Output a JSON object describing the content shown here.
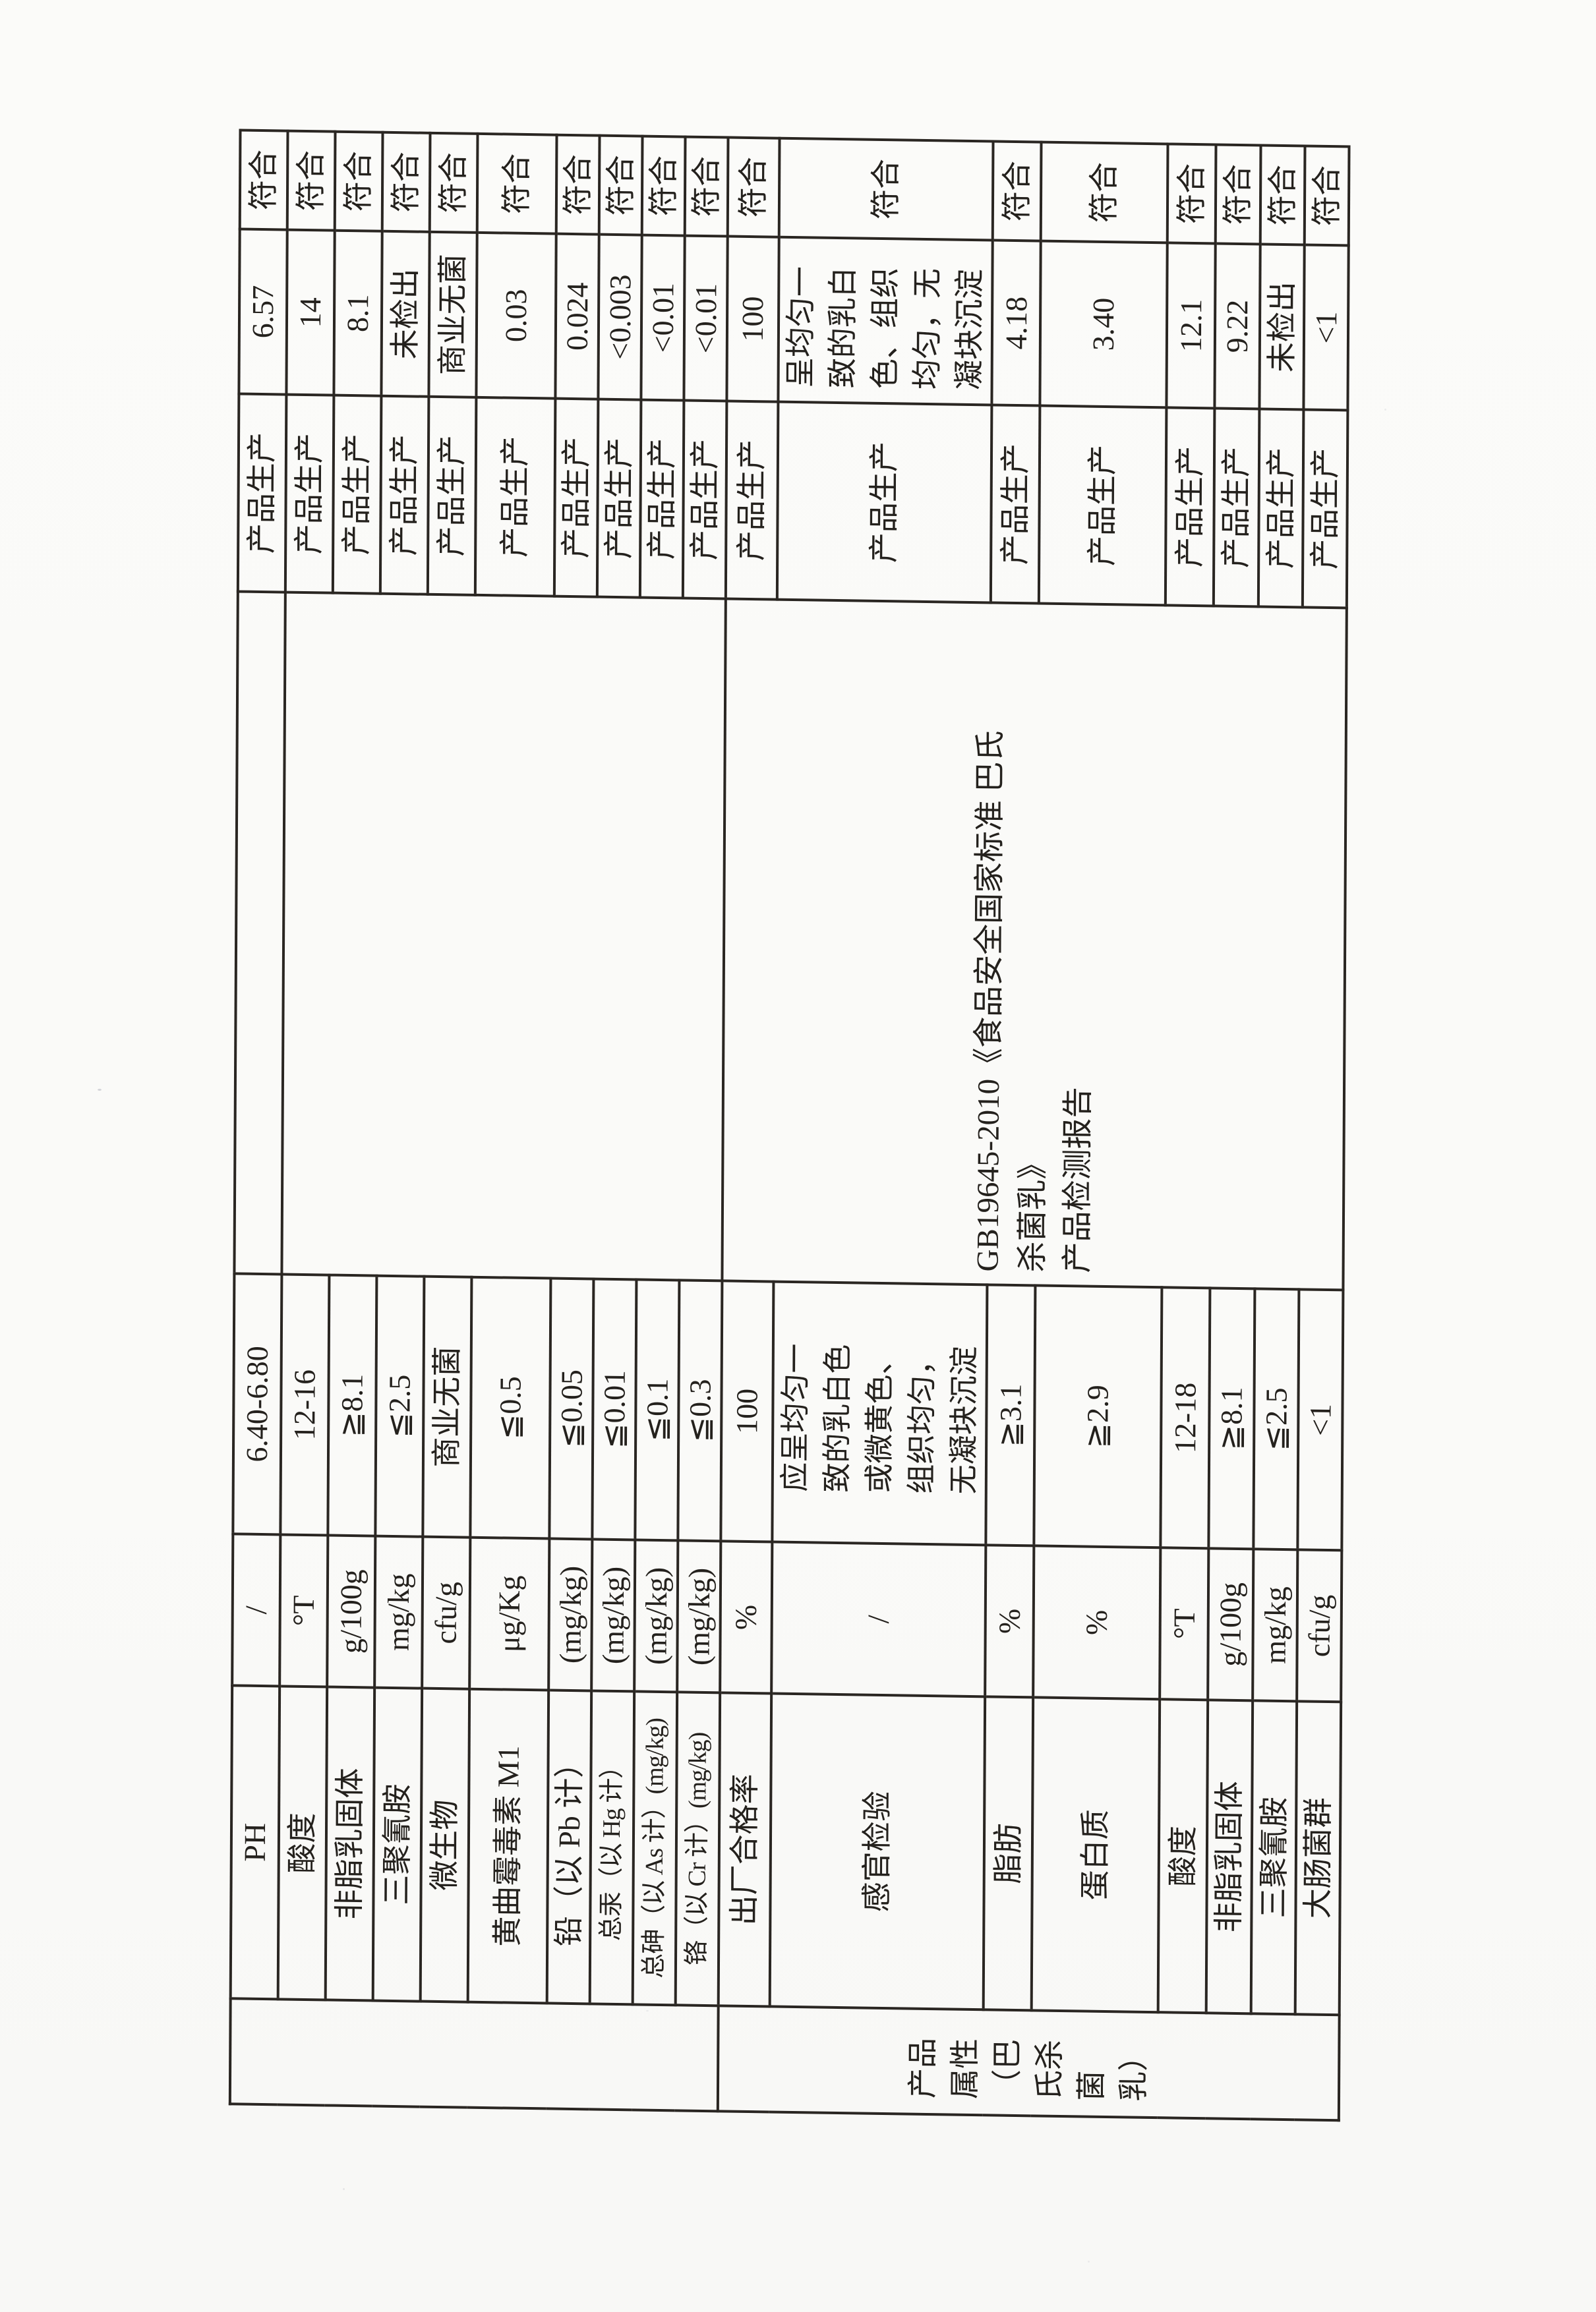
{
  "page": {
    "background": "#fbfbf9",
    "ink": "#24211d"
  },
  "report": {
    "attribute_label": "产品属性（巴氏杀菌乳）",
    "standard_text": "GB19645-2010《食品安全国家标准 巴氏\n杀菌乳》\n产品检测报告",
    "rows": [
      {
        "item": "PH",
        "unit": "/",
        "limit": "6.40-6.80",
        "category": "产品生产",
        "result": "6.57",
        "conclusion": "符合"
      },
      {
        "item": "酸度",
        "unit": "°T",
        "limit": "12-16",
        "category": "产品生产",
        "result": "14",
        "conclusion": "符合"
      },
      {
        "item": "非脂乳固体",
        "unit": "g/100g",
        "limit": "≧8.1",
        "category": "产品生产",
        "result": "8.1",
        "conclusion": "符合"
      },
      {
        "item": "三聚氰胺",
        "unit": "mg/kg",
        "limit": "≦2.5",
        "category": "产品生产",
        "result": "未检出",
        "conclusion": "符合"
      },
      {
        "item": "微生物",
        "unit": "cfu/g",
        "limit": "商业无菌",
        "category": "产品生产",
        "result": "商业无菌",
        "conclusion": "符合"
      },
      {
        "item": "黄曲霉毒素 M1",
        "unit": "μg/Kg",
        "limit": "≦0.5",
        "category": "产品生产",
        "result": "0.03",
        "conclusion": "符合"
      },
      {
        "item": "铅（以 Pb 计）",
        "unit": "(mg/kg)",
        "limit": "≦0.05",
        "category": "产品生产",
        "result": "0.024",
        "conclusion": "符合"
      },
      {
        "item": "总汞（以 Hg 计）",
        "unit": "(mg/kg)",
        "limit": "≦0.01",
        "category": "产品生产",
        "result": "<0.003",
        "conclusion": "符合"
      },
      {
        "item": "总砷（以 As 计）(mg/kg)",
        "unit": "(mg/kg)",
        "limit": "≦0.1",
        "category": "产品生产",
        "result": "<0.01",
        "conclusion": "符合"
      },
      {
        "item": "铬（以 Cr 计）(mg/kg)",
        "unit": "(mg/kg)",
        "limit": "≦0.3",
        "category": "产品生产",
        "result": "<0.01",
        "conclusion": "符合"
      },
      {
        "item": "出厂合格率",
        "unit": "%",
        "limit": "100",
        "category": "产品生产",
        "result": "100",
        "conclusion": "符合"
      },
      {
        "item": "感官检验",
        "unit": "/",
        "limit": "应呈均匀一致的乳白色或微黄色、组织均匀，无凝块沉淀",
        "category": "产品生产",
        "result": "呈均匀一致的乳白色、组织均匀，无凝块沉淀",
        "conclusion": "符合"
      },
      {
        "item": "脂肪",
        "unit": "%",
        "limit": "≧3.1",
        "category": "产品生产",
        "result": "4.18",
        "conclusion": "符合"
      },
      {
        "item": "蛋白质",
        "unit": "%",
        "limit": "≧2.9",
        "category": "产品生产",
        "result": "3.40",
        "conclusion": "符合"
      },
      {
        "item": "酸度",
        "unit": "°T",
        "limit": "12-18",
        "category": "产品生产",
        "result": "12.1",
        "conclusion": "符合"
      },
      {
        "item": "非脂乳固体",
        "unit": "g/100g",
        "limit": "≧8.1",
        "category": "产品生产",
        "result": "9.22",
        "conclusion": "符合"
      },
      {
        "item": "三聚氰胺",
        "unit": "mg/kg",
        "limit": "≦2.5",
        "category": "产品生产",
        "result": "未检出",
        "conclusion": "符合"
      },
      {
        "item": "大肠菌群",
        "unit": "cfu/g",
        "limit": "<1",
        "category": "产品生产",
        "result": "<1",
        "conclusion": "符合"
      }
    ]
  }
}
